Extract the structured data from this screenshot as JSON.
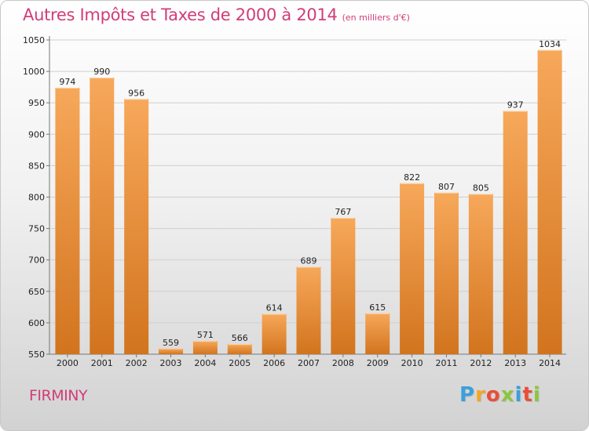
{
  "title": "Autres Impôts et Taxes de 2000 à 2014",
  "unit_note": "(en milliers d'€)",
  "city": "FIRMINY",
  "logo": {
    "letters": [
      "P",
      "r",
      "o",
      "x",
      "i",
      "t",
      "i"
    ],
    "colors": [
      "#3aa0dc",
      "#f5a623",
      "#e94e3b",
      "#8cc63f",
      "#3aa0dc",
      "#e94e3b",
      "#8cc63f"
    ]
  },
  "colors": {
    "bar_top": "#f7a85a",
    "bar_bottom": "#d2741e",
    "title": "#d13d78"
  },
  "chart_data": {
    "type": "bar",
    "categories": [
      "2000",
      "2001",
      "2002",
      "2003",
      "2004",
      "2005",
      "2006",
      "2007",
      "2008",
      "2009",
      "2010",
      "2011",
      "2012",
      "2013",
      "2014"
    ],
    "values": [
      974,
      990,
      956,
      559,
      571,
      566,
      614,
      689,
      767,
      615,
      822,
      807,
      805,
      937,
      1034
    ],
    "ylim": [
      550,
      1050
    ],
    "yticks": [
      550,
      600,
      650,
      700,
      750,
      800,
      850,
      900,
      950,
      1000,
      1050
    ],
    "grid": true,
    "title": "Autres Impôts et Taxes de 2000 à 2014",
    "xlabel": "",
    "ylabel": ""
  }
}
